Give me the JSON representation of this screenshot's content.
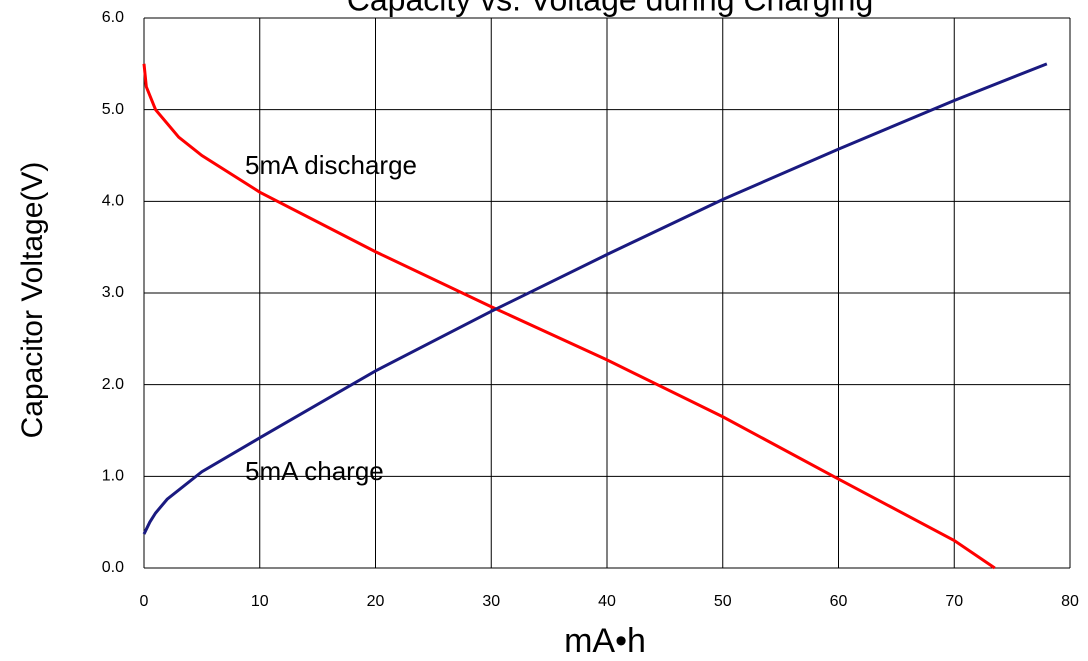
{
  "chart_data": {
    "type": "line",
    "title": "Capacity vs. Voltage during Charging",
    "x_label": "mA•h",
    "y_label": "Capacitor Voltage(V)",
    "xlim": [
      0,
      80
    ],
    "xticks": [
      0,
      10,
      20,
      30,
      40,
      50,
      60,
      70,
      80
    ],
    "ylim": [
      0,
      6
    ],
    "yticks": [
      {
        "value": 0,
        "label": "0.0"
      },
      {
        "value": 1,
        "label": "1.0"
      },
      {
        "value": 2,
        "label": "2.0"
      },
      {
        "value": 3,
        "label": "3.0"
      },
      {
        "value": 4,
        "label": "4.0"
      },
      {
        "value": 5,
        "label": "5.0"
      },
      {
        "value": 6,
        "label": "6.0"
      }
    ],
    "grid": true,
    "series": [
      {
        "name": "5mA discharge",
        "color": "#ff0000",
        "x": [
          0,
          0.2,
          1,
          3,
          5,
          10,
          20,
          30,
          40,
          50,
          60,
          70,
          73.5
        ],
        "values": [
          5.5,
          5.25,
          5.0,
          4.7,
          4.5,
          4.1,
          3.45,
          2.85,
          2.27,
          1.65,
          0.97,
          0.3,
          0.0
        ]
      },
      {
        "name": "5mA charge",
        "color": "#1a1a80",
        "x": [
          0,
          0.5,
          1,
          2,
          5,
          10,
          20,
          30,
          40,
          50,
          60,
          70,
          78
        ],
        "values": [
          0.37,
          0.5,
          0.6,
          0.75,
          1.05,
          1.42,
          2.15,
          2.8,
          3.42,
          4.02,
          4.57,
          5.1,
          5.5
        ]
      }
    ]
  }
}
